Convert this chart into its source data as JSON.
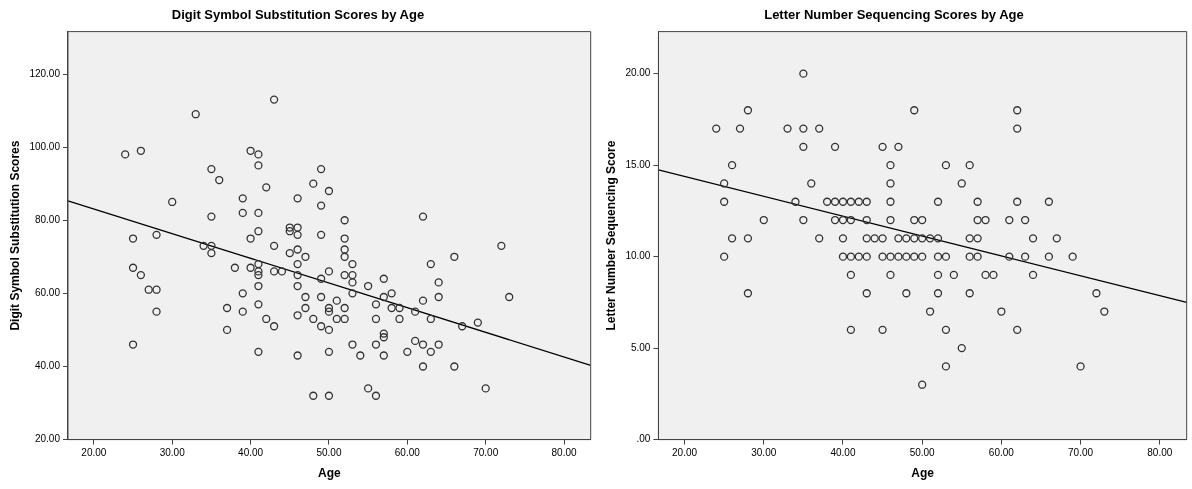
{
  "chart_data": [
    {
      "type": "scatter",
      "title": "Digit Symbol Substitution Scores by Age",
      "xlabel": "Age",
      "ylabel": "Digit Symbol Substitution Scores",
      "marker": "circle",
      "grid": false,
      "legend": false,
      "xlim": [
        16.7,
        83.4
      ],
      "xticks": [
        {
          "value": 20,
          "label": "20.00"
        },
        {
          "value": 30,
          "label": "30.00"
        },
        {
          "value": 40,
          "label": "40.00"
        },
        {
          "value": 50,
          "label": "50.00"
        },
        {
          "value": 60,
          "label": "60.00"
        },
        {
          "value": 70,
          "label": "70.00"
        },
        {
          "value": 80,
          "label": "80.00"
        }
      ],
      "ylim": [
        20,
        131.6
      ],
      "yticks": [
        {
          "value": 20,
          "label": "20.00"
        },
        {
          "value": 40,
          "label": "40.00"
        },
        {
          "value": 60,
          "label": "60.00"
        },
        {
          "value": 80,
          "label": "80.00"
        },
        {
          "value": 100,
          "label": "100.00"
        },
        {
          "value": 120,
          "label": "120.00"
        }
      ],
      "series": [
        {
          "color": "#333333",
          "x": [
            24,
            26,
            33,
            43,
            40,
            41,
            41,
            35,
            36,
            42,
            48,
            49,
            30,
            39,
            46,
            49,
            39,
            41,
            35,
            41,
            45,
            45,
            46,
            46,
            49,
            25,
            28,
            40,
            34,
            35,
            35,
            43,
            46,
            45,
            47,
            25,
            26,
            27,
            28,
            28,
            25,
            38,
            40,
            41,
            41,
            41,
            43,
            44,
            46,
            46,
            49,
            41,
            46,
            39,
            37,
            39,
            41,
            42,
            43,
            37,
            47,
            47,
            46,
            48,
            49,
            49,
            41,
            46,
            48,
            50,
            62,
            52,
            52,
            52,
            52,
            53,
            72,
            66,
            63,
            50,
            52,
            53,
            53,
            57,
            55,
            64,
            53,
            58,
            57,
            64,
            73,
            51,
            56,
            62,
            50,
            52,
            58,
            59,
            61,
            50,
            51,
            52,
            56,
            59,
            63,
            69,
            67,
            50,
            57,
            57,
            53,
            56,
            62,
            64,
            61,
            50,
            60,
            63,
            54,
            57,
            62,
            66,
            55,
            56,
            50,
            70
          ],
          "values": [
            98,
            99,
            109,
            113,
            99,
            98,
            95,
            94,
            91,
            89,
            90,
            94,
            85,
            86,
            86,
            84,
            82,
            82,
            81,
            77,
            78,
            77,
            78,
            76,
            76,
            75,
            76,
            75,
            73,
            73,
            71,
            73,
            72,
            71,
            70,
            67,
            65,
            61,
            61,
            55,
            46,
            67,
            67,
            68,
            66,
            65,
            66,
            66,
            68,
            65,
            64,
            62,
            62,
            60,
            56,
            55,
            57,
            53,
            51,
            50,
            59,
            56,
            54,
            53,
            59,
            51,
            44,
            43,
            32,
            88,
            81,
            80,
            75,
            72,
            70,
            68,
            73,
            70,
            68,
            66,
            65,
            65,
            63,
            64,
            62,
            63,
            60,
            60,
            59,
            59,
            59,
            58,
            57,
            58,
            56,
            56,
            56,
            56,
            55,
            55,
            53,
            53,
            53,
            53,
            53,
            52,
            51,
            50,
            49,
            48,
            46,
            46,
            46,
            46,
            47,
            44,
            44,
            44,
            43,
            43,
            40,
            40,
            34,
            32,
            32,
            34
          ]
        },
        {
          "type": "line",
          "color": "#000000",
          "marker": "none",
          "x": [
            16.7,
            83.4
          ],
          "values": [
            85.3,
            40.3
          ]
        }
      ]
    },
    {
      "type": "scatter",
      "title": "Letter Number Sequencing Scores by Age",
      "xlabel": "Age",
      "ylabel": "Letter Number Sequencing Score",
      "marker": "circle",
      "grid": false,
      "legend": false,
      "xlim": [
        16.7,
        83.4
      ],
      "xticks": [
        {
          "value": 20,
          "label": "20.00"
        },
        {
          "value": 30,
          "label": "30.00"
        },
        {
          "value": 40,
          "label": "40.00"
        },
        {
          "value": 50,
          "label": "50.00"
        },
        {
          "value": 60,
          "label": "60.00"
        },
        {
          "value": 70,
          "label": "70.00"
        },
        {
          "value": 80,
          "label": "80.00"
        }
      ],
      "ylim": [
        0,
        22.3
      ],
      "yticks": [
        {
          "value": 0,
          "label": ".00"
        },
        {
          "value": 5,
          "label": "5.00"
        },
        {
          "value": 10,
          "label": "10.00"
        },
        {
          "value": 15,
          "label": "15.00"
        },
        {
          "value": 20,
          "label": "20.00"
        }
      ],
      "series": [
        {
          "color": "#333333",
          "x": [
            35,
            28,
            24,
            27,
            33,
            35,
            37,
            35,
            39,
            45,
            47,
            49,
            26,
            46,
            25,
            36,
            46,
            25,
            34,
            38,
            39,
            40,
            41,
            42,
            43,
            46,
            30,
            35,
            39,
            40,
            41,
            43,
            46,
            49,
            26,
            28,
            37,
            40,
            43,
            44,
            45,
            47,
            48,
            49,
            25,
            40,
            41,
            42,
            43,
            45,
            46,
            47,
            48,
            49,
            41,
            46,
            28,
            43,
            48,
            41,
            45,
            62,
            62,
            53,
            56,
            55,
            52,
            57,
            62,
            66,
            50,
            57,
            58,
            61,
            63,
            50,
            51,
            52,
            56,
            57,
            64,
            67,
            50,
            52,
            53,
            56,
            57,
            61,
            63,
            66,
            69,
            52,
            54,
            58,
            59,
            64,
            52,
            56,
            72,
            51,
            60,
            73,
            53,
            62,
            55,
            53,
            70,
            50
          ],
          "values": [
            20,
            18,
            17,
            17,
            17,
            17,
            17,
            16,
            16,
            16,
            16,
            18,
            15,
            15,
            14,
            14,
            14,
            13,
            13,
            13,
            13,
            13,
            13,
            13,
            13,
            13,
            12,
            12,
            12,
            12,
            12,
            12,
            12,
            12,
            11,
            11,
            11,
            11,
            11,
            11,
            11,
            11,
            11,
            11,
            10,
            10,
            10,
            10,
            10,
            10,
            10,
            10,
            10,
            10,
            9,
            9,
            8,
            8,
            8,
            6,
            6,
            18,
            17,
            15,
            15,
            14,
            13,
            13,
            13,
            13,
            12,
            12,
            12,
            12,
            12,
            11,
            11,
            11,
            11,
            11,
            11,
            11,
            10,
            10,
            10,
            10,
            10,
            10,
            10,
            10,
            10,
            9,
            9,
            9,
            9,
            9,
            8,
            8,
            8,
            7,
            7,
            7,
            6,
            6,
            5,
            4,
            4,
            3
          ]
        },
        {
          "type": "line",
          "color": "#000000",
          "marker": "none",
          "x": [
            16.7,
            83.4
          ],
          "values": [
            14.74,
            7.5
          ]
        }
      ]
    }
  ]
}
